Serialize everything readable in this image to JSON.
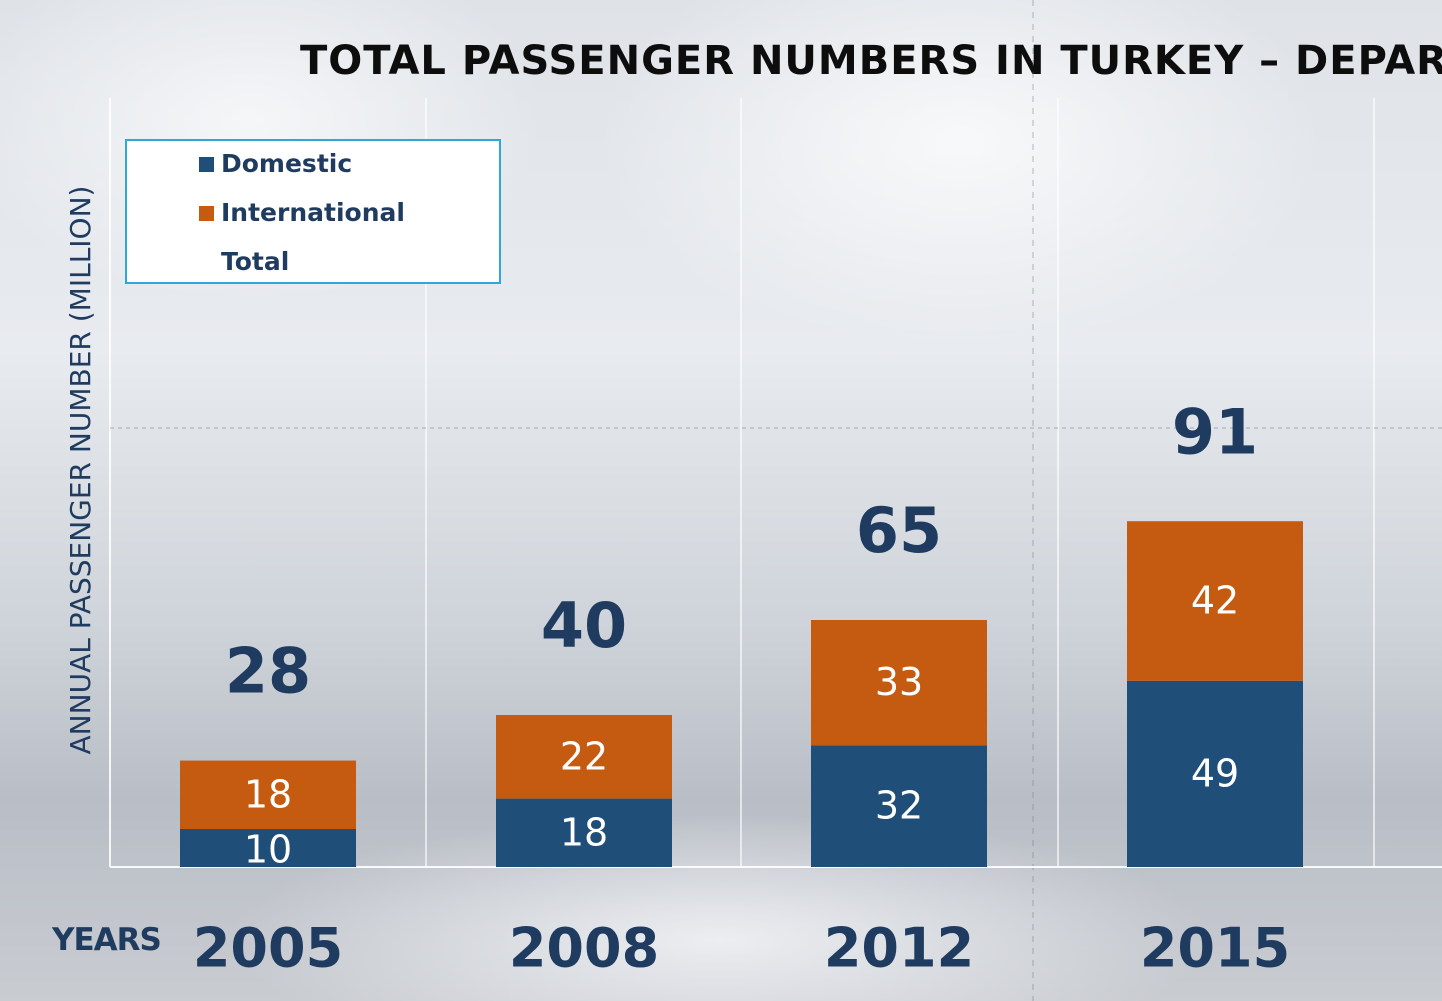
{
  "colors": {
    "domestic": "#1f4e79",
    "international": "#c55a11",
    "total_label": "#1f3b5f",
    "segment_label": "#ffffff",
    "year_label": "#1f3b5f"
  },
  "chart_data": {
    "type": "bar",
    "stacked": true,
    "title": "TOTAL PASSENGER NUMBERS IN TURKEY – DEPARTU",
    "ylabel": "ANNUAL PASSENGER NUMBER (MILLION)",
    "xlabel": "YEARS",
    "categories": [
      "2005",
      "2008",
      "2012",
      "2015"
    ],
    "series": [
      {
        "name": "Domestic",
        "values": [
          10,
          18,
          32,
          49
        ]
      },
      {
        "name": "International",
        "values": [
          18,
          22,
          33,
          42
        ]
      }
    ],
    "totals_label": "Total",
    "totals": [
      28,
      40,
      65,
      91
    ],
    "ylim": [
      0,
      140
    ],
    "grid": true,
    "legend": "top-left"
  }
}
